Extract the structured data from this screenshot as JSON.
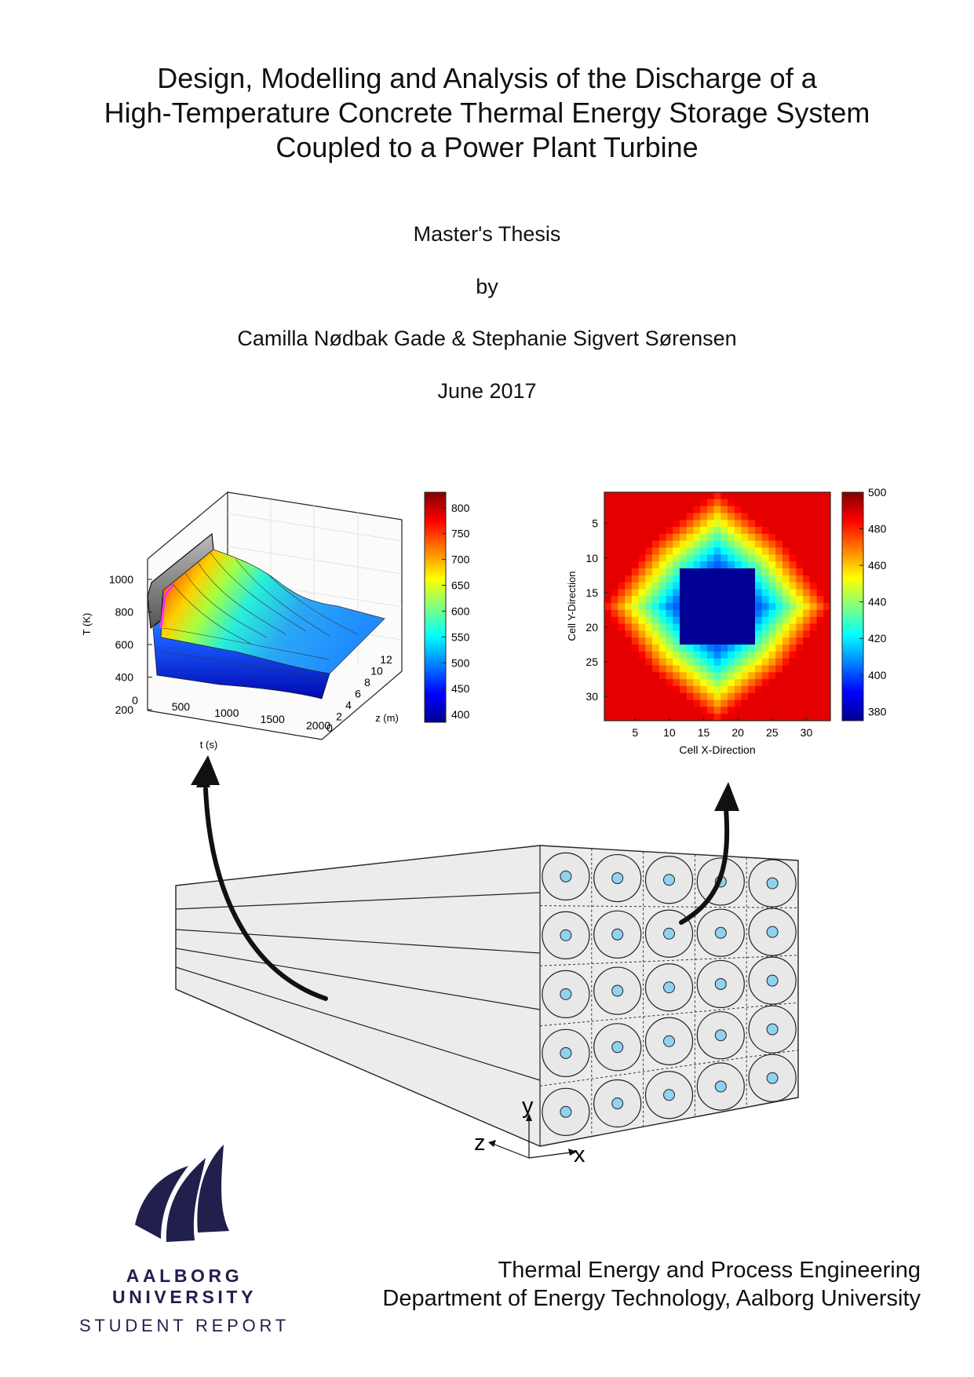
{
  "document": {
    "title_lines": [
      "Design, Modelling and Analysis of the Discharge of a",
      "High-Temperature Concrete Thermal Energy Storage System",
      "Coupled to a Power Plant Turbine"
    ],
    "subtitle": "Master's Thesis",
    "by": "by",
    "authors": "Camilla Nødbak Gade & Stephanie Sigvert Sørensen",
    "date": "June 2017"
  },
  "surface_plot": {
    "zlabel": "T (K)",
    "xlabel": "t (s)",
    "ylabel": "z (m)",
    "z_ticks": [
      "200",
      "400",
      "600",
      "800",
      "1000"
    ],
    "t_ticks": [
      "0",
      "500",
      "1000",
      "1500",
      "2000"
    ],
    "zpos_ticks": [
      "0",
      "2",
      "4",
      "6",
      "8",
      "10",
      "12"
    ],
    "colorbar_ticks": [
      "400",
      "450",
      "500",
      "550",
      "600",
      "650",
      "700",
      "750",
      "800"
    ],
    "colorbar_range": [
      385,
      830
    ],
    "colormap": "jet"
  },
  "heatmap": {
    "xlabel": "Cell X-Direction",
    "ylabel": "Cell Y-Direction",
    "x_ticks": [
      "5",
      "10",
      "15",
      "20",
      "25",
      "30"
    ],
    "y_ticks": [
      "5",
      "10",
      "15",
      "20",
      "25",
      "30"
    ],
    "colorbar_ticks": [
      "380",
      "400",
      "420",
      "440",
      "460",
      "480",
      "500"
    ],
    "colorbar_range": [
      375,
      500
    ],
    "grid_size": 33,
    "colormap": "jet"
  },
  "storage_diagram": {
    "axis_labels": {
      "x": "x",
      "y": "y",
      "z": "z"
    },
    "grid_rows": 5,
    "grid_cols": 5
  },
  "footer": {
    "university": "AALBORG UNIVERSITY",
    "report_type": "STUDENT REPORT",
    "department_line1": "Thermal Energy and Process Engineering",
    "department_line2": "Department of Energy Technology, Aalborg University"
  },
  "colors": {
    "university_navy": "#211f4c",
    "text": "#111111"
  }
}
